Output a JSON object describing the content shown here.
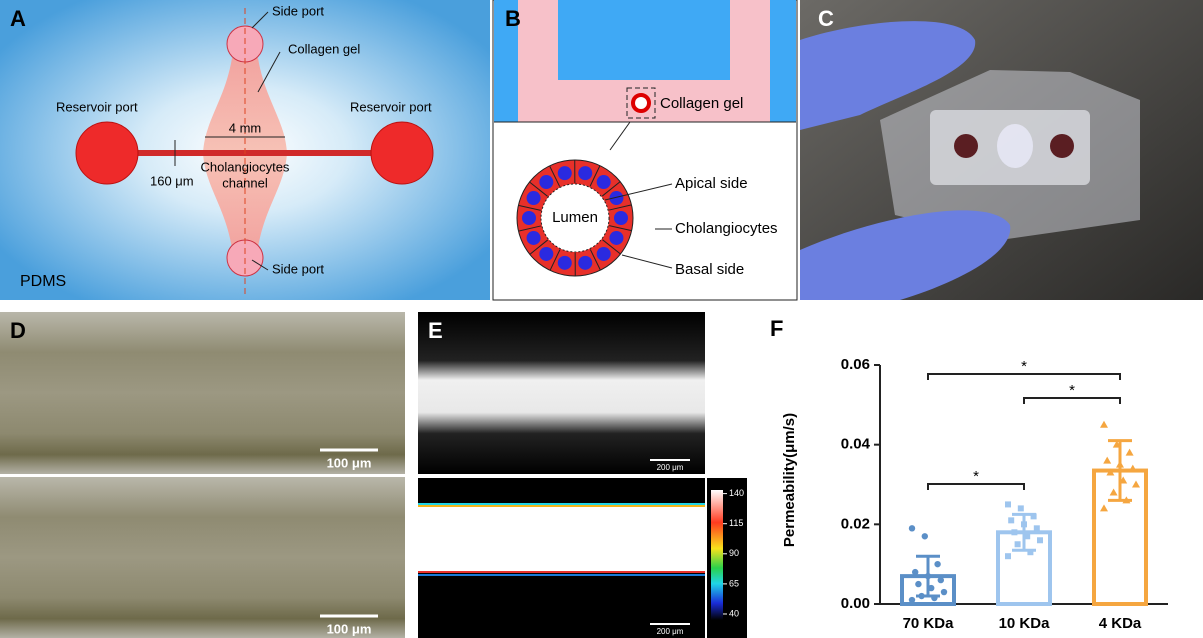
{
  "panels": {
    "A": {
      "label": "A",
      "side_port_top": "Side port",
      "collagen_gel": "Collagen gel",
      "reservoir_left": "Reservoir port",
      "reservoir_right": "Reservoir port",
      "width": "4 mm",
      "channel": [
        "Cholangiocytes",
        "channel"
      ],
      "gap": "160 μm",
      "side_port_bottom": "Side port",
      "material": "PDMS"
    },
    "B": {
      "label": "B",
      "collagen_gel": "Collagen gel",
      "lumen": "Lumen",
      "apical": "Apical side",
      "cells": "Cholangiocytes",
      "basal": "Basal side"
    },
    "C": {
      "label": "C"
    },
    "D": {
      "label": "D",
      "scale_top": "100 μm",
      "scale_bottom": "100 μm"
    },
    "E": {
      "label": "E",
      "scale_top": "200 μm",
      "scale_bottom": "200 μm",
      "colorbar_lim": [
        35,
        143
      ],
      "colorbar_ticks": [
        140,
        115,
        90,
        65,
        40
      ]
    },
    "F": {
      "label": "F",
      "chart": {
        "type": "bar",
        "y_label": "Permeability(μm/s)",
        "categories": [
          "70 KDa",
          "10 KDa",
          "4 KDa"
        ],
        "values": [
          0.007,
          0.018,
          0.0335
        ],
        "errors": [
          0.005,
          0.0045,
          0.0075
        ],
        "colors": [
          "#5b8fc7",
          "#9ec5ee",
          "#f5a640"
        ],
        "points": [
          [
            0.019,
            0.017,
            0.01,
            0.008,
            0.007,
            0.006,
            0.005,
            0.004,
            0.003,
            0.002,
            0.0015,
            0.001
          ],
          [
            0.025,
            0.024,
            0.022,
            0.021,
            0.02,
            0.019,
            0.018,
            0.017,
            0.016,
            0.015,
            0.013,
            0.012
          ],
          [
            0.045,
            0.04,
            0.038,
            0.036,
            0.035,
            0.034,
            0.033,
            0.031,
            0.03,
            0.028,
            0.026,
            0.024
          ]
        ],
        "ylim": [
          0,
          0.06
        ],
        "yticks": [
          {
            "value": 0,
            "label": "0.00"
          },
          {
            "value": 0.02,
            "label": "0.02"
          },
          {
            "value": 0.04,
            "label": "0.04"
          },
          {
            "value": 0.06,
            "label": "0.06"
          }
        ],
        "significance": [
          {
            "pair": [
              "70 KDa",
              "4 KDa"
            ],
            "label": "*"
          },
          {
            "pair": [
              "10 KDa",
              "4 KDa"
            ],
            "label": "*"
          },
          {
            "pair": [
              "70 KDa",
              "10 KDa"
            ],
            "label": "*"
          }
        ]
      }
    }
  }
}
